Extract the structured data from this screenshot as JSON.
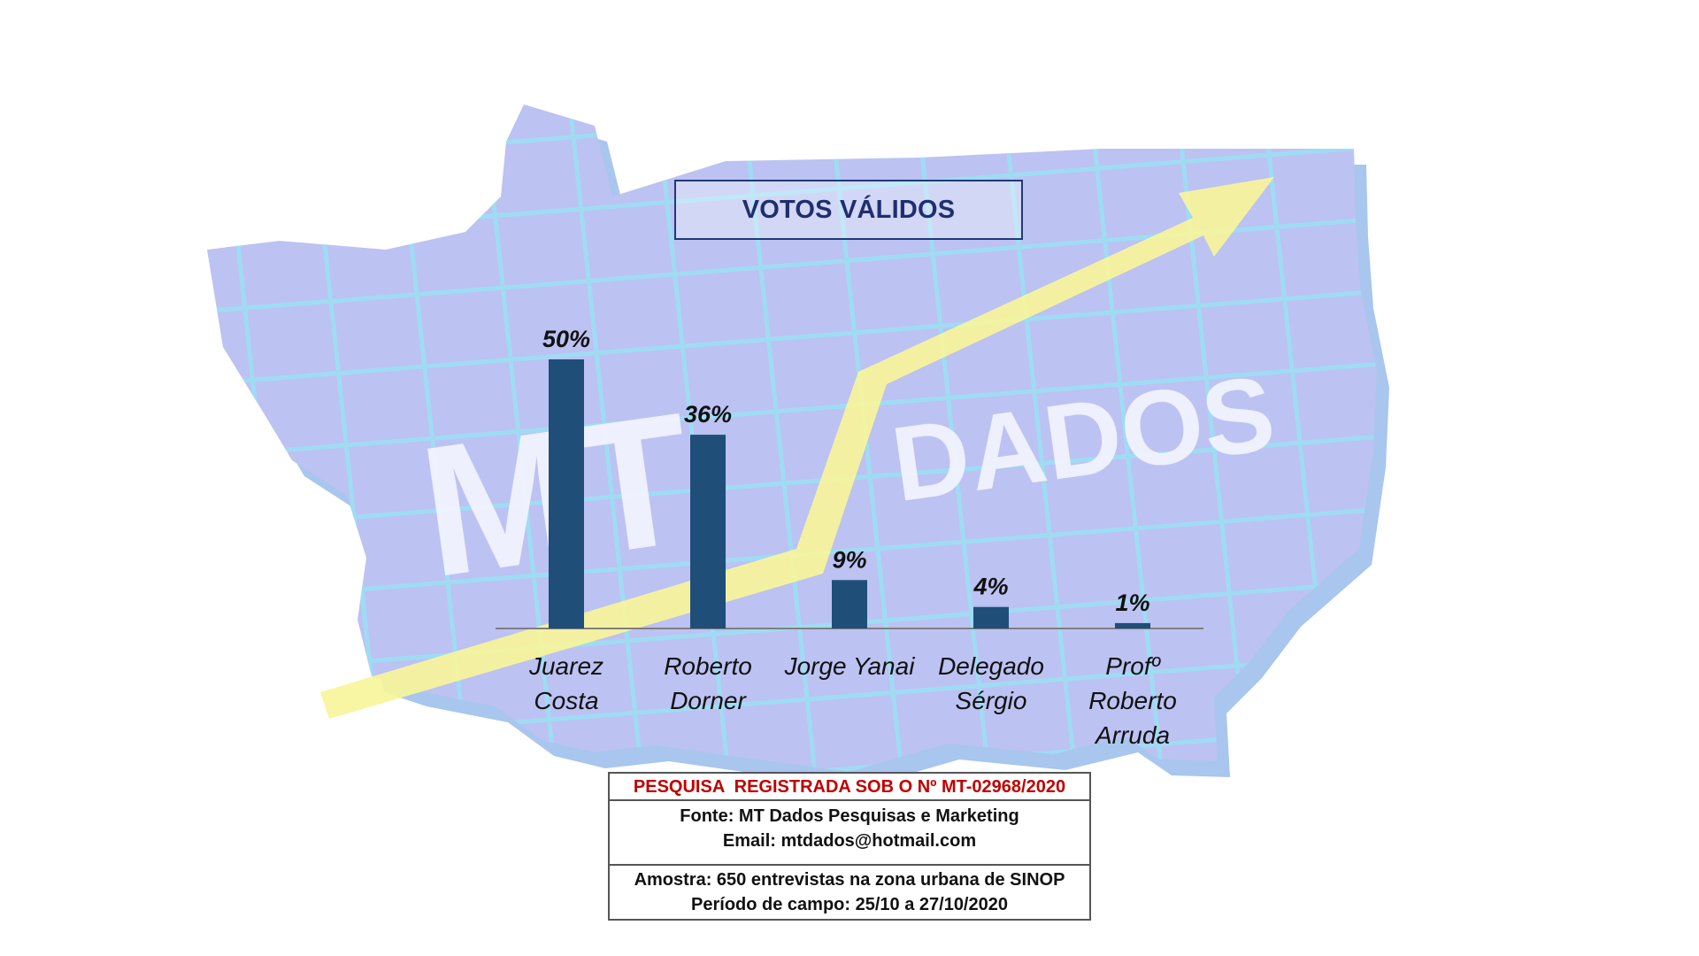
{
  "chart_data": {
    "type": "bar",
    "title": "VOTOS VÁLIDOS",
    "categories": [
      [
        "Juarez",
        "Costa"
      ],
      [
        "Roberto",
        "Dorner"
      ],
      [
        "Jorge Yanai"
      ],
      [
        "Delegado",
        "Sérgio"
      ],
      [
        "Profº",
        "Roberto",
        "Arruda"
      ]
    ],
    "values": [
      50,
      36,
      9,
      4,
      1
    ],
    "data_labels": [
      "50%",
      "36%",
      "9%",
      "4%",
      "1%"
    ],
    "unit": "%",
    "ylim": [
      0,
      50
    ],
    "grid": false,
    "legend": "none",
    "bar_color": "#1f4e79"
  },
  "watermark": {
    "text_left": "MT",
    "text_right": "DADOS"
  },
  "footer": {
    "registration": "PESQUISA  REGISTRADA SOB O Nº MT-02968/2020",
    "source": "Fonte: MT Dados Pesquisas e Marketing",
    "email": "Email: mtdados@hotmail.com",
    "sample": "Amostra: 650 entrevistas na zona urbana de SINOP",
    "period": "Período de campo: 25/10 a 27/10/2020"
  },
  "colors": {
    "title": "#1f2f6e",
    "registration": "#c00000",
    "map": "#b9bff0",
    "arrow": "#f7f59a"
  }
}
